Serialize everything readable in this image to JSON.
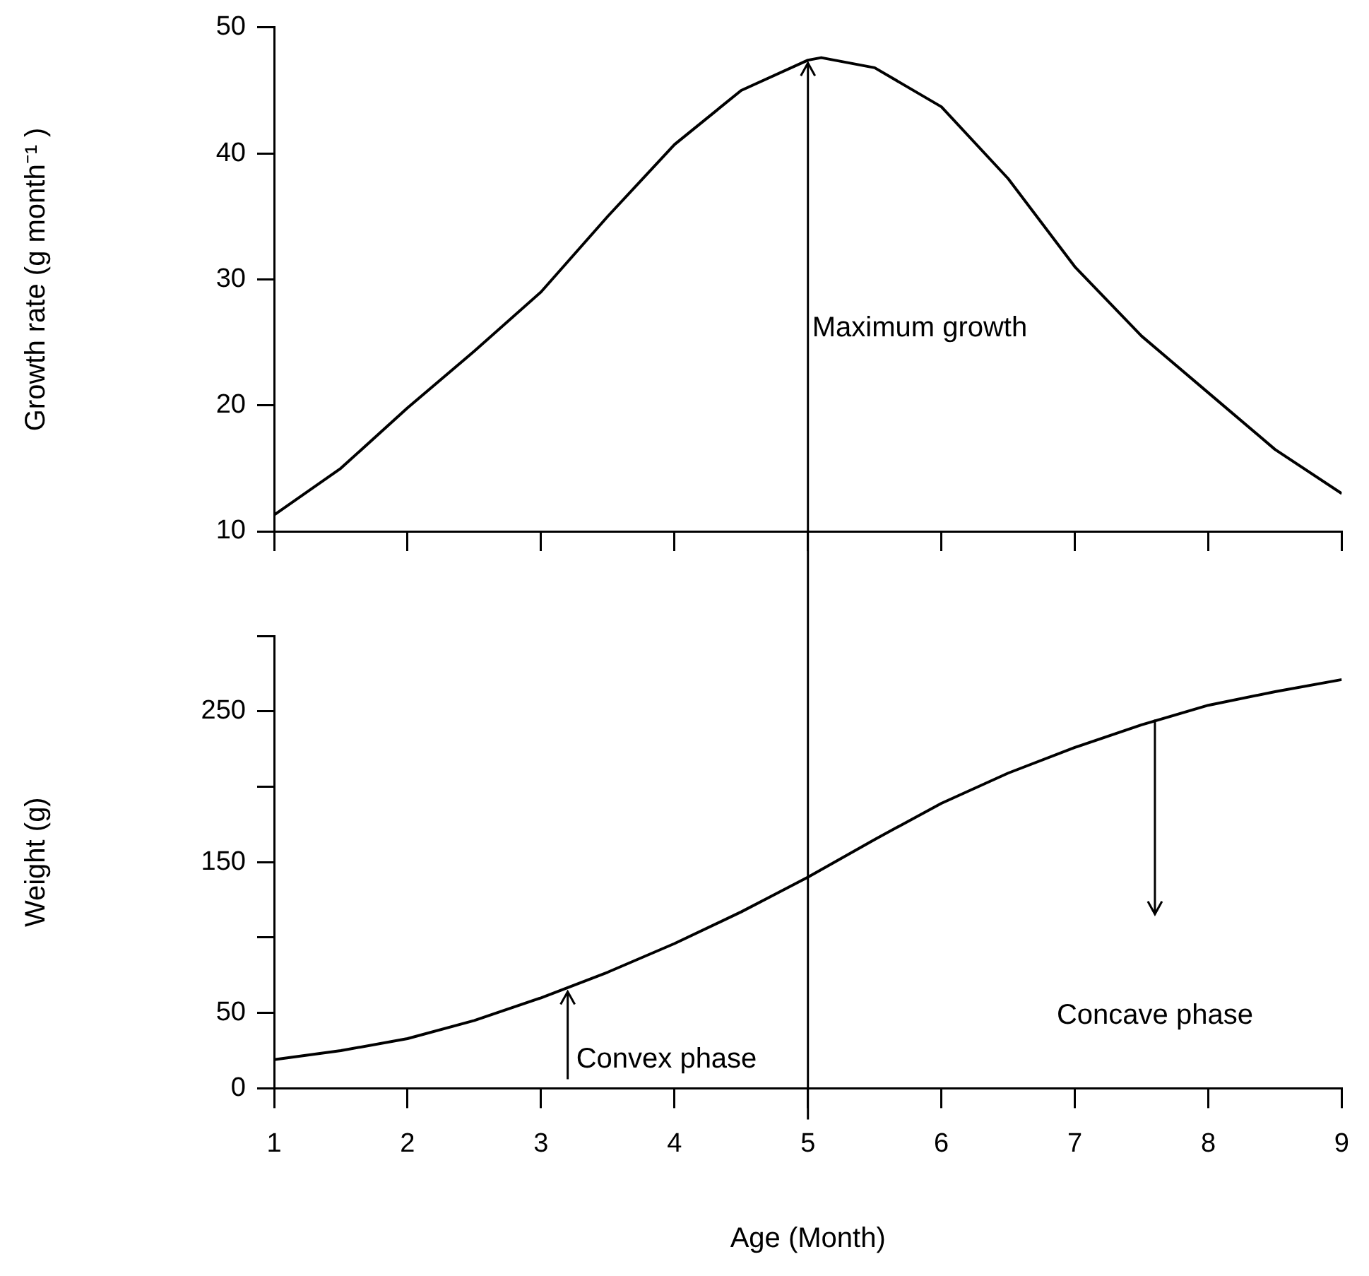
{
  "chart_data": [
    {
      "type": "line",
      "ylabel": "Growth rate (g month⁻¹ )",
      "xlim": [
        1,
        9
      ],
      "xticks": [
        {
          "value": 1,
          "label": null
        },
        {
          "value": 2,
          "label": null
        },
        {
          "value": 3,
          "label": null
        },
        {
          "value": 4,
          "label": null
        },
        {
          "value": 5,
          "label": null
        },
        {
          "value": 6,
          "label": null
        },
        {
          "value": 7,
          "label": null
        },
        {
          "value": 8,
          "label": null
        },
        {
          "value": 9,
          "label": null
        }
      ],
      "ylim": [
        10,
        50
      ],
      "yticks": [
        10,
        20,
        30,
        40,
        50
      ],
      "tick_labels": "y",
      "grid": false,
      "legend": false,
      "marker": "none",
      "line_style": "solid",
      "ref_lines": [
        {
          "axis": "x",
          "value": 5,
          "label": "Maximum growth",
          "color": "#000000"
        }
      ],
      "series": [
        {
          "color": "#000000",
          "x": [
            1,
            1.5,
            2,
            2.5,
            3,
            3.5,
            4,
            4.5,
            5,
            5.1,
            5.5,
            6,
            6.5,
            7,
            7.5,
            8,
            8.5,
            9
          ],
          "values": [
            11.3,
            15,
            19.8,
            24.3,
            29,
            35,
            40.7,
            45,
            47.4,
            47.6,
            46.8,
            43.7,
            38,
            31,
            25.5,
            21,
            16.5,
            13
          ]
        }
      ]
    },
    {
      "type": "line",
      "xlabel": "Age (Month)",
      "ylabel": "Weight (g)",
      "xlim": [
        1,
        9
      ],
      "xticks": [
        1,
        2,
        3,
        4,
        5,
        6,
        7,
        8,
        9
      ],
      "ylim": [
        0,
        300
      ],
      "yticks": [
        0,
        50,
        {
          "value": 100,
          "label": null
        },
        150,
        {
          "value": 200,
          "label": null
        },
        250,
        {
          "value": 300,
          "label": null
        }
      ],
      "grid": false,
      "legend": false,
      "marker": "none",
      "line_style": "solid",
      "ref_lines": [
        {
          "axis": "x",
          "value": 5,
          "color": "#000000"
        }
      ],
      "annotations": [
        {
          "text": "Convex phase",
          "x": 3.2,
          "y": 66
        },
        "Concave phase"
      ],
      "series": [
        {
          "color": "#000000",
          "x": [
            1,
            1.5,
            2,
            2.5,
            3,
            3.5,
            4,
            4.5,
            5,
            5.5,
            6,
            6.5,
            7,
            7.5,
            8,
            8.5,
            9
          ],
          "values": [
            19,
            25,
            33,
            45,
            60,
            77,
            96,
            117,
            140,
            165,
            189,
            209,
            226,
            241,
            254,
            263,
            271
          ]
        }
      ]
    }
  ]
}
